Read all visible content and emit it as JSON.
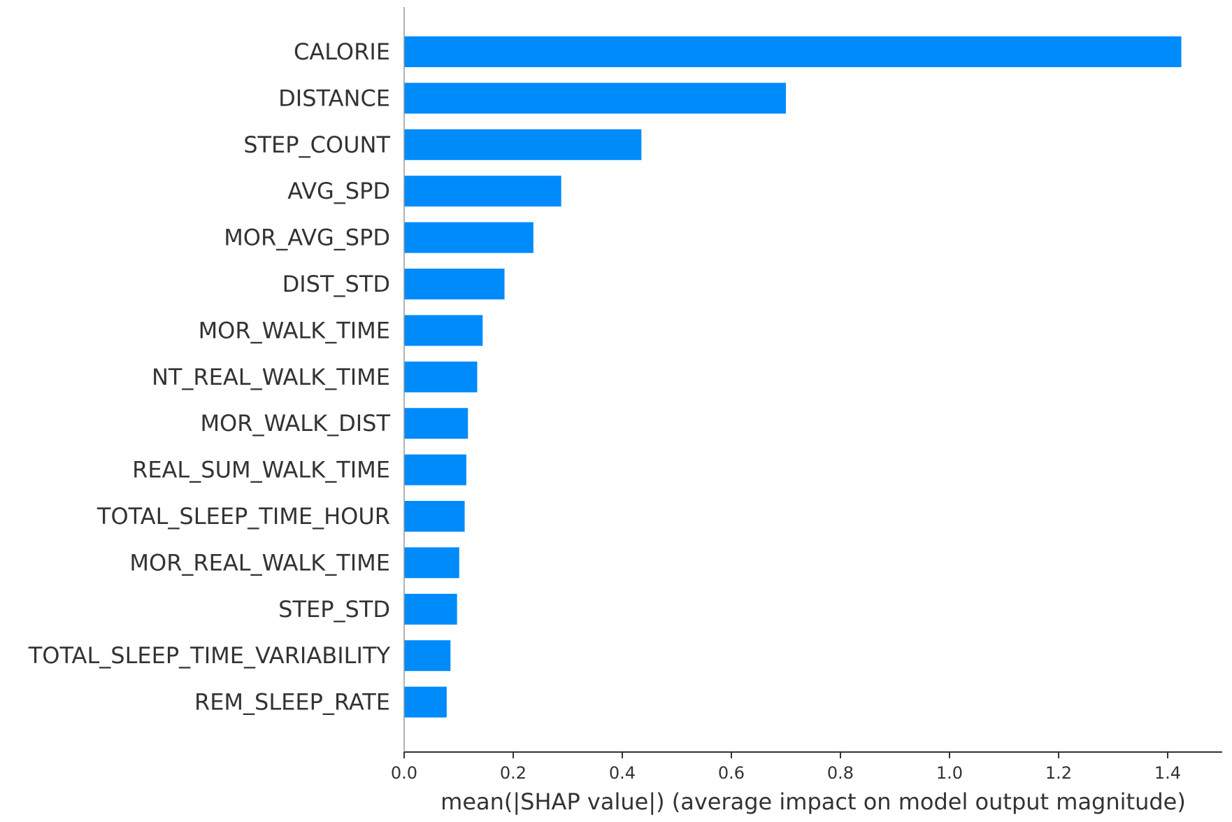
{
  "chart_data": {
    "type": "bar",
    "orientation": "horizontal",
    "categories": [
      "CALORIE",
      "DISTANCE",
      "STEP_COUNT",
      "AVG_SPD",
      "MOR_AVG_SPD",
      "DIST_STD",
      "MOR_WALK_TIME",
      "NT_REAL_WALK_TIME",
      "MOR_WALK_DIST",
      "REAL_SUM_WALK_TIME",
      "TOTAL_SLEEP_TIME_HOUR",
      "MOR_REAL_WALK_TIME",
      "STEP_STD",
      "TOTAL_SLEEP_TIME_VARIABILITY",
      "REM_SLEEP_RATE"
    ],
    "values": [
      1.425,
      0.7,
      0.435,
      0.288,
      0.237,
      0.184,
      0.144,
      0.134,
      0.117,
      0.114,
      0.111,
      0.101,
      0.097,
      0.085,
      0.078
    ],
    "xlabel": "mean(|SHAP value|) (average impact on model output magnitude)",
    "ylabel": "",
    "title": "",
    "xlim": [
      0,
      1.5
    ],
    "xticks": [
      0.0,
      0.2,
      0.4,
      0.6,
      0.8,
      1.0,
      1.2,
      1.4
    ],
    "xtick_labels": [
      "0.0",
      "0.2",
      "0.4",
      "0.6",
      "0.8",
      "1.0",
      "1.2",
      "1.4"
    ],
    "grid": false,
    "bar_color": "#008BFB",
    "axis_color": "#333333"
  }
}
